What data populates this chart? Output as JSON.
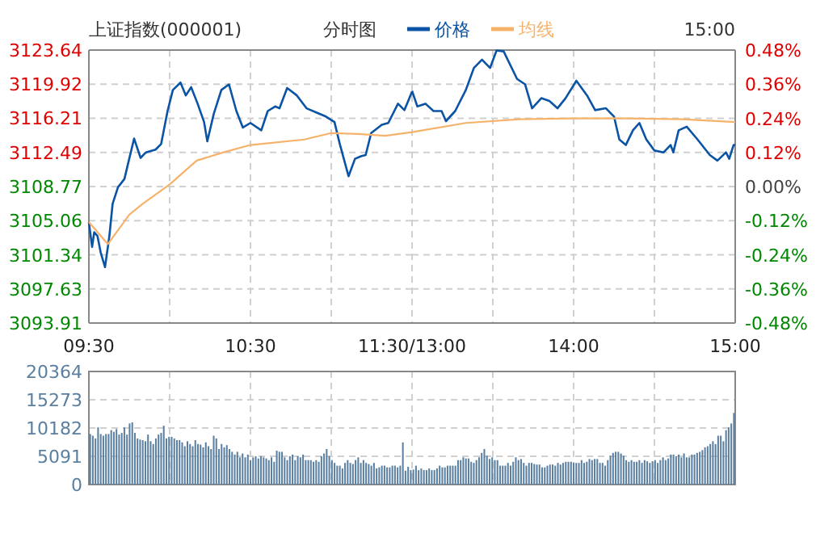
{
  "chart_data": [
    {
      "type": "line",
      "title": "上证指数(000001)",
      "subtitle": "分时图",
      "legend": "top",
      "grid": true,
      "xlim": [
        9.5,
        11.5
      ],
      "xticks": [
        {
          "value": 9.5,
          "label": "09:30"
        },
        {
          "value": 10,
          "label": null
        },
        {
          "value": 10.5,
          "label": "10:30"
        },
        {
          "value": 11,
          "label": null
        },
        {
          "value": 11.5,
          "label": "11:30/13:00"
        }
      ],
      "ylim": [
        3093.91,
        3123.64
      ],
      "yticks": [
        3093.91,
        3097.63,
        3101.34,
        3105.06,
        3108.77,
        3112.49,
        3116.21,
        3119.92,
        3123.64
      ],
      "series": [
        {
          "name": "价格",
          "color": "#0b53a4",
          "x": [
            9.5,
            9.52,
            9.533,
            9.553,
            9.573,
            9.6,
            9.627,
            9.647,
            9.68,
            9.72,
            9.747,
            9.78,
            9.82,
            9.853,
            9.913,
            9.947,
            9.987,
            10.02,
            10.067,
            10.1,
            10.133,
            10.173,
            10.213,
            10.233,
            10.273,
            10.32,
            10.367,
            10.413,
            10.453,
            10.5,
            10.567,
            10.607,
            10.653,
            10.68,
            10.727,
            10.787,
            10.847,
            10.913,
            10.967,
            11.02,
            11.053,
            11.107,
            11.147,
            11.187,
            11.213,
            11.247,
            11.313,
            11.353,
            11.413,
            11.453,
            11.5
          ],
          "values": [
            3104.9,
            3102.2,
            3103.8,
            3103.4,
            3101.6,
            3100.0,
            3103.4,
            3106.9,
            3108.7,
            3109.6,
            3111.6,
            3114.0,
            3111.9,
            3112.5,
            3112.8,
            3113.4,
            3117.0,
            3119.3,
            3120.1,
            3118.7,
            3119.6,
            3117.8,
            3115.8,
            3113.7,
            3116.7,
            3119.3,
            3119.9,
            3117.0,
            3115.2,
            3115.7,
            3114.9,
            3117.0,
            3117.5,
            3117.3,
            3119.5,
            3118.7,
            3117.3,
            3116.8,
            3116.4,
            3115.8,
            3113.4,
            3109.9,
            3111.8,
            3112.1,
            3112.2,
            3114.6,
            3115.5,
            3115.7,
            3117.8,
            3117.1,
            3119.1
          ]
        },
        {
          "name": "均线",
          "color": "#f6b26b",
          "x": [
            9.5,
            9.617,
            9.75,
            9.833,
            10,
            10.167,
            10.333,
            10.5,
            10.833,
            11,
            11.167,
            11.333,
            11.5
          ],
          "values": [
            3104.9,
            3102.5,
            3105.7,
            3106.9,
            3109.0,
            3111.6,
            3112.5,
            3113.3,
            3113.9,
            3114.6,
            3114.5,
            3114.3,
            3114.7
          ]
        }
      ]
    },
    {
      "type": "line",
      "annotations": [
        "15:00"
      ],
      "grid": true,
      "xlim": [
        13,
        15
      ],
      "xticks": [
        {
          "value": 13.5,
          "label": null
        },
        {
          "value": 14,
          "label": "14:00"
        },
        {
          "value": 14.5,
          "label": null
        },
        {
          "value": 15,
          "label": "15:00"
        }
      ],
      "ylim": [
        3093.91,
        3123.64
      ],
      "y2lim": [
        -0.48,
        0.48
      ],
      "y2ticks": [
        {
          "value": -0.48,
          "label": "-0.48%"
        },
        {
          "value": -0.36,
          "label": "-0.36%"
        },
        {
          "value": -0.24,
          "label": "-0.24%"
        },
        {
          "value": -0.12,
          "label": "-0.12%"
        },
        {
          "value": 0,
          "label": "0.00%"
        },
        {
          "value": 0.12,
          "label": "0.12%"
        },
        {
          "value": 0.24,
          "label": "0.24%"
        },
        {
          "value": 0.36,
          "label": "0.36%"
        },
        {
          "value": 0.48,
          "label": "0.48%"
        }
      ],
      "series": [
        {
          "color": "#0b53a4",
          "x": [
            13,
            13.033,
            13.083,
            13.133,
            13.183,
            13.21,
            13.267,
            13.333,
            13.383,
            13.433,
            13.483,
            13.523,
            13.567,
            13.65,
            13.7,
            13.743,
            13.8,
            13.85,
            13.9,
            13.95,
            14.017,
            14.083,
            14.133,
            14.2,
            14.25,
            14.283,
            14.323,
            14.367,
            14.407,
            14.45,
            14.5,
            14.557,
            14.6,
            14.617,
            14.65,
            14.7,
            14.767,
            14.843,
            14.89,
            14.943,
            14.963,
            14.99,
            15
          ],
          "values": [
            3119.2,
            3117.5,
            3117.8,
            3117.0,
            3117.0,
            3115.9,
            3117.0,
            3119.3,
            3121.7,
            3122.6,
            3121.7,
            3123.6,
            3123.5,
            3120.5,
            3119.9,
            3117.3,
            3118.4,
            3118.1,
            3117.3,
            3118.4,
            3120.3,
            3118.7,
            3117.1,
            3117.3,
            3116.4,
            3113.9,
            3113.3,
            3114.9,
            3115.7,
            3113.9,
            3112.7,
            3112.5,
            3113.3,
            3112.5,
            3114.9,
            3115.3,
            3113.9,
            3112.2,
            3111.6,
            3112.5,
            3111.8,
            3113.3,
            3113.3
          ]
        },
        {
          "color": "#f6b26b",
          "x": [
            13,
            13.333,
            13.667,
            14,
            14.333,
            14.667,
            15
          ],
          "values": [
            3114.7,
            3115.7,
            3116.1,
            3116.2,
            3116.2,
            3116.1,
            3115.8
          ]
        }
      ]
    },
    {
      "type": "bar",
      "color": "#5a7fa0",
      "grid": true,
      "tick_labels": "y",
      "ylim": [
        0,
        20364
      ],
      "yticks": [
        0,
        5091,
        10182,
        15273,
        20364
      ],
      "categories": [
        null,
        null,
        null,
        null,
        null,
        null,
        null,
        null,
        null,
        null,
        null,
        null,
        null,
        null,
        null,
        null,
        null,
        null,
        null,
        null,
        null,
        null,
        null,
        null,
        null,
        null,
        null,
        null,
        null,
        null,
        null,
        null,
        null,
        null,
        null,
        null,
        null,
        null,
        null,
        null,
        null,
        null,
        null,
        null,
        null,
        null,
        null,
        null,
        null,
        null,
        null,
        null,
        null,
        null,
        null,
        null,
        null,
        null,
        null,
        null,
        null,
        null,
        null,
        null,
        null,
        null,
        null,
        null,
        null,
        null,
        null,
        null,
        null,
        null,
        null,
        null,
        null,
        null,
        null,
        null,
        null,
        null,
        null,
        null,
        null,
        null,
        null,
        null,
        null,
        null,
        null,
        null,
        null,
        null,
        null,
        null,
        null,
        null,
        null,
        null,
        null,
        null,
        null,
        null,
        null,
        null,
        null,
        null,
        null,
        null,
        null,
        null,
        null,
        null,
        null,
        null,
        null,
        null,
        null,
        null,
        null,
        null,
        null,
        null,
        null,
        null,
        null,
        null,
        null,
        null,
        null,
        null,
        null,
        null,
        null,
        null,
        null,
        null,
        null,
        null,
        null,
        null,
        null,
        null,
        null,
        null,
        null,
        null,
        null,
        null,
        null,
        null,
        null,
        null,
        null,
        null,
        null,
        null,
        null,
        null,
        null,
        null,
        null,
        null,
        null,
        null,
        null,
        null,
        null,
        null,
        null,
        null,
        null,
        null,
        null,
        null,
        null,
        null,
        null,
        null,
        null,
        null,
        null,
        null,
        null,
        null,
        null,
        null,
        null,
        null,
        null,
        null,
        null,
        null,
        null,
        null,
        null,
        null,
        null,
        null,
        null,
        null,
        null,
        null,
        null,
        null,
        null,
        null,
        null,
        null,
        null,
        null,
        null,
        null,
        null,
        null,
        null,
        null,
        null,
        null,
        null,
        null,
        null,
        null,
        null,
        null,
        null,
        null,
        null,
        null,
        null,
        null,
        null,
        null,
        null,
        null,
        null,
        null,
        null,
        null,
        null,
        null,
        null,
        null,
        null,
        null
      ],
      "values": [
        9100,
        8800,
        8300,
        10300,
        9100,
        8800,
        9100,
        9100,
        9800,
        9500,
        10000,
        9000,
        9300,
        10300,
        9000,
        11000,
        11200,
        9300,
        8300,
        8100,
        8000,
        7800,
        9000,
        7800,
        7300,
        8300,
        9000,
        9300,
        10600,
        8300,
        8600,
        8600,
        8300,
        8000,
        8000,
        7600,
        6900,
        7800,
        7300,
        6900,
        8000,
        7300,
        7200,
        6700,
        7600,
        6900,
        6400,
        8800,
        8300,
        6400,
        7300,
        6700,
        7100,
        6400,
        5900,
        5400,
        5900,
        4900,
        5600,
        4900,
        5400,
        4400,
        4900,
        5100,
        4700,
        5100,
        4900,
        4700,
        4400,
        4900,
        4100,
        6100,
        5900,
        5900,
        4900,
        4400,
        5100,
        5400,
        4400,
        5100,
        4900,
        5400,
        4400,
        4400,
        4400,
        4100,
        4400,
        4100,
        5100,
        5600,
        6400,
        5100,
        4400,
        3900,
        3400,
        3400,
        2900,
        3900,
        4400,
        3900,
        3700,
        4400,
        4900,
        3900,
        4400,
        3900,
        3700,
        3400,
        3900,
        2900,
        3100,
        3400,
        3400,
        3100,
        3100,
        3400,
        3400,
        3100,
        3400,
        7600,
        2500,
        3200,
        2600,
        2700,
        3400,
        2600,
        2900,
        2600,
        2600,
        2900,
        2600,
        2600,
        2900,
        3400,
        3100,
        3100,
        3400,
        3400,
        3400,
        3400,
        4400,
        4400,
        4900,
        4700,
        4700,
        4100,
        3900,
        4400,
        4900,
        5700,
        6400,
        5200,
        4600,
        4900,
        4400,
        4400,
        3400,
        3400,
        3400,
        3900,
        3400,
        4100,
        4900,
        4400,
        4600,
        3900,
        3400,
        3900,
        3900,
        3700,
        3600,
        3600,
        3100,
        3100,
        3400,
        3600,
        3600,
        3400,
        3900,
        3600,
        3900,
        4100,
        4100,
        4100,
        3900,
        3900,
        3900,
        4400,
        3900,
        4100,
        4600,
        4400,
        4600,
        4600,
        3900,
        3900,
        3400,
        4400,
        5200,
        5700,
        5900,
        5900,
        5600,
        5200,
        4400,
        4100,
        4400,
        4100,
        4100,
        4400,
        3900,
        4400,
        4200,
        3900,
        4200,
        4400,
        3900,
        4400,
        4900,
        4400,
        4700,
        5400,
        5400,
        5100,
        5400,
        4900,
        5600,
        4900,
        4900,
        5400,
        5400,
        5700,
        5900,
        6200,
        6700,
        6900,
        7300,
        7800,
        7300,
        8800,
        8800,
        7800,
        9800,
        10300,
        11000,
        12900
      ]
    }
  ]
}
